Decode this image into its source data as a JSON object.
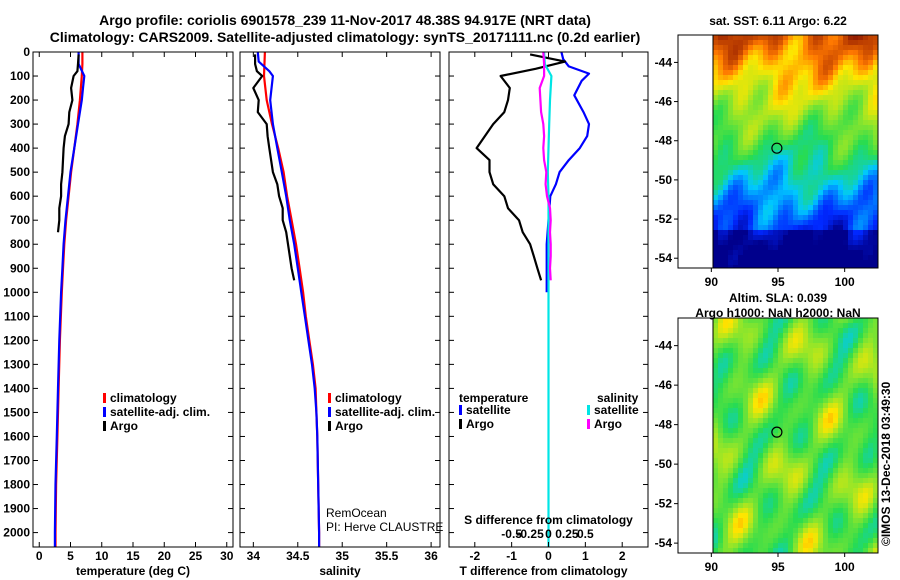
{
  "header": {
    "line1": "Argo profile: coriolis 6901578_239 11-Nov-2017 48.38S 94.917E (NRT data)",
    "line2": "Climatology: CARS2009. Satellite-adjusted climatology: synTS_20171111.nc (0.2d earlier)"
  },
  "colors": {
    "climatology": "#ff0000",
    "satellite": "#0000ff",
    "argo": "#000000",
    "cyan": "#00e5e5",
    "magenta": "#ff00ff"
  },
  "chart_data": [
    {
      "type": "line",
      "title": "",
      "xlabel": "temperature (deg C)",
      "ylabel": "",
      "xlim": [
        -1,
        31
      ],
      "ylim": [
        2060,
        0
      ],
      "xticks": [
        "0",
        "5",
        "10",
        "15",
        "20",
        "25",
        "30"
      ],
      "xtick_values": [
        0,
        5,
        10,
        15,
        20,
        25,
        30
      ],
      "yticks": [
        "0",
        "100",
        "200",
        "300",
        "400",
        "500",
        "600",
        "700",
        "800",
        "900",
        "1000",
        "1100",
        "1200",
        "1300",
        "1400",
        "1500",
        "1600",
        "1700",
        "1800",
        "1900",
        "2000"
      ],
      "legend": {
        "placement": "center-right",
        "entries": [
          "climatology",
          "satellite-adj. clim.",
          "Argo"
        ]
      },
      "series": [
        {
          "name": "climatology",
          "color": "#ff0000",
          "depth": [
            0,
            50,
            100,
            200,
            300,
            400,
            500,
            600,
            700,
            800,
            900,
            1000,
            1200,
            1400,
            1600,
            1800,
            2000,
            2060
          ],
          "values": [
            6.9,
            6.9,
            6.8,
            6.5,
            6.1,
            5.6,
            5.1,
            4.7,
            4.3,
            4.0,
            3.8,
            3.6,
            3.3,
            3.1,
            2.9,
            2.7,
            2.6,
            2.6
          ]
        },
        {
          "name": "satellite-adj. clim.",
          "color": "#0000ff",
          "depth": [
            0,
            50,
            100,
            150,
            200,
            300,
            400,
            500,
            600,
            700,
            800,
            900,
            1000,
            1200,
            1400,
            1600,
            1800,
            2000,
            2060
          ],
          "values": [
            6.3,
            6.3,
            7.2,
            7.0,
            6.8,
            6.2,
            5.6,
            5.0,
            4.6,
            4.2,
            3.9,
            3.7,
            3.5,
            3.2,
            3.0,
            2.8,
            2.6,
            2.5,
            2.5
          ]
        },
        {
          "name": "Argo",
          "color": "#000000",
          "depth": [
            10,
            50,
            80,
            100,
            150,
            200,
            250,
            300,
            350,
            400,
            450,
            500,
            550,
            600,
            650,
            700,
            750
          ],
          "values": [
            6.3,
            6.2,
            6.1,
            5.5,
            5.1,
            5.3,
            4.8,
            4.7,
            4.1,
            3.9,
            3.8,
            3.7,
            3.5,
            3.5,
            3.2,
            3.2,
            3.0
          ]
        }
      ]
    },
    {
      "type": "line",
      "title": "",
      "xlabel": "salinity",
      "ylabel": "",
      "xlim": [
        33.85,
        36.1
      ],
      "ylim": [
        2060,
        0
      ],
      "xticks": [
        "34",
        "34.5",
        "35",
        "35.5",
        "36"
      ],
      "xtick_values": [
        34,
        34.5,
        35,
        35.5,
        36
      ],
      "legend": {
        "placement": "center-right",
        "entries": [
          "climatology",
          "satellite-adj. clim.",
          "Argo"
        ]
      },
      "series": [
        {
          "name": "climatology",
          "color": "#ff0000",
          "depth": [
            0,
            100,
            200,
            300,
            400,
            500,
            600,
            700,
            800,
            900,
            1000,
            1100,
            1200,
            1300,
            1400,
            1500,
            1600,
            1800,
            2000,
            2060
          ],
          "values": [
            34.13,
            34.12,
            34.15,
            34.21,
            34.28,
            34.34,
            34.38,
            34.43,
            34.48,
            34.52,
            34.56,
            34.59,
            34.63,
            34.67,
            34.7,
            34.71,
            34.72,
            34.73,
            34.74,
            34.74
          ]
        },
        {
          "name": "satellite-adj. clim.",
          "color": "#0000ff",
          "depth": [
            0,
            40,
            80,
            100,
            200,
            300,
            400,
            500,
            600,
            700,
            800,
            900,
            1000,
            1100,
            1200,
            1300,
            1400,
            1500,
            1600,
            1800,
            2000,
            2060
          ],
          "values": [
            34.05,
            34.06,
            34.18,
            34.22,
            34.19,
            34.22,
            34.27,
            34.32,
            34.37,
            34.41,
            34.46,
            34.5,
            34.54,
            34.58,
            34.62,
            34.66,
            34.69,
            34.71,
            34.72,
            34.73,
            34.74,
            34.74
          ]
        },
        {
          "name": "Argo",
          "color": "#000000",
          "depth": [
            10,
            50,
            80,
            100,
            150,
            200,
            250,
            300,
            350,
            400,
            450,
            500,
            550,
            600,
            650,
            700,
            750,
            800,
            850,
            900,
            950
          ],
          "values": [
            34.02,
            34.02,
            34.04,
            34.1,
            34.0,
            34.06,
            34.05,
            34.15,
            34.16,
            34.18,
            34.2,
            34.22,
            34.27,
            34.29,
            34.33,
            34.33,
            34.37,
            34.39,
            34.41,
            34.43,
            34.46
          ]
        }
      ]
    },
    {
      "type": "line",
      "title": "S difference from climatology",
      "xlabel": "T difference from climatology",
      "ylabel": "",
      "xlim": [
        -2.7,
        2.7
      ],
      "ylim": [
        2060,
        0
      ],
      "xticks": [
        "-2",
        "-1",
        "0",
        "1",
        "2"
      ],
      "xtick_values": [
        -2,
        -1,
        0,
        1,
        2
      ],
      "secondary_xticks": [
        "-0.5",
        "-0.25",
        "0",
        "0.25",
        "0.5"
      ],
      "secondary_xtick_values": [
        -0.5,
        -0.25,
        0,
        0.25,
        0.5
      ],
      "legend": {
        "placement": "center",
        "groups": [
          {
            "title": "temperature",
            "entries": [
              "satellite",
              "Argo"
            ]
          },
          {
            "title": "salinity",
            "entries": [
              "satellite",
              "Argo"
            ]
          }
        ]
      },
      "series": [
        {
          "name": "temperature satellite",
          "axis": "T",
          "color": "#0000ff",
          "depth": [
            0,
            30,
            60,
            90,
            120,
            180,
            250,
            300,
            350,
            400,
            450,
            500,
            550,
            600,
            700,
            800,
            900,
            1000
          ],
          "values": [
            0.35,
            0.4,
            0.55,
            1.1,
            0.9,
            0.7,
            0.95,
            1.1,
            1.05,
            0.85,
            0.55,
            0.3,
            0.2,
            0.05,
            0.0,
            -0.05,
            -0.05,
            -0.05
          ]
        },
        {
          "name": "temperature Argo",
          "axis": "T",
          "color": "#000000",
          "depth": [
            10,
            40,
            70,
            100,
            150,
            200,
            250,
            300,
            400,
            450,
            500,
            550,
            600,
            650,
            700,
            750,
            800,
            850,
            900,
            950
          ],
          "values": [
            -0.5,
            0.45,
            -0.35,
            -1.3,
            -1.05,
            -1.1,
            -1.2,
            -1.5,
            -1.95,
            -1.6,
            -1.6,
            -1.5,
            -1.2,
            -1.1,
            -0.8,
            -0.7,
            -0.5,
            -0.4,
            -0.3,
            -0.2
          ]
        },
        {
          "name": "salinity satellite",
          "axis": "S",
          "color": "#00e5e5",
          "depth": [
            0,
            50,
            100,
            200,
            300,
            400,
            500,
            600,
            700,
            800,
            900,
            1000,
            1200,
            1400,
            1600,
            1800,
            2000,
            2060
          ],
          "values": [
            -0.06,
            -0.05,
            0.04,
            0.02,
            0.01,
            0.0,
            -0.01,
            0.0,
            0.0,
            0.0,
            0.0,
            0.0,
            0.0,
            0.0,
            0.0,
            0.0,
            0.0,
            0.0
          ]
        },
        {
          "name": "salinity Argo",
          "axis": "S",
          "color": "#ff00ff",
          "depth": [
            0,
            50,
            100,
            150,
            200,
            250,
            300,
            350,
            400,
            450,
            500,
            550,
            600,
            650,
            700,
            750,
            800,
            850,
            900,
            950
          ],
          "values": [
            -0.07,
            -0.06,
            -0.06,
            -0.12,
            -0.11,
            -0.1,
            -0.07,
            -0.06,
            -0.07,
            -0.06,
            -0.03,
            -0.04,
            -0.02,
            0.02,
            0.03,
            0.02,
            0.03,
            0.03,
            0.02,
            0.03
          ]
        }
      ]
    },
    {
      "type": "heatmap",
      "title": "sat. SST: 6.11  Argo: 6.22",
      "xticks": [
        "90",
        "95",
        "100"
      ],
      "xtick_values": [
        90,
        95,
        100
      ],
      "yticks": [
        "-44",
        "-46",
        "-48",
        "-50",
        "-52",
        "-54"
      ],
      "ytick_values": [
        -44,
        -46,
        -48,
        -50,
        -52,
        -54
      ],
      "xlim": [
        87.5,
        102.5
      ],
      "ylim": [
        -54.5,
        -42.6
      ],
      "marker": {
        "lon": 94.917,
        "lat": -48.38
      }
    },
    {
      "type": "heatmap",
      "title": "Altim. SLA: 0.039",
      "subtitle": "Argo h1000: NaN h2000: NaN",
      "xticks": [
        "90",
        "95",
        "100"
      ],
      "xtick_values": [
        90,
        95,
        100
      ],
      "yticks": [
        "-44",
        "-46",
        "-48",
        "-50",
        "-52",
        "-54"
      ],
      "ytick_values": [
        -44,
        -46,
        -48,
        -50,
        -52,
        -54
      ],
      "xlim": [
        87.5,
        102.5
      ],
      "ylim": [
        -54.5,
        -42.6
      ],
      "marker": {
        "lon": 94.917,
        "lat": -48.38
      }
    }
  ],
  "panel3_text": {
    "credit1": "RemOcean",
    "credit2": "PI: Herve CLAUSTRE"
  },
  "watermark": "©IMOS 13-Dec-2018 03:49:30"
}
